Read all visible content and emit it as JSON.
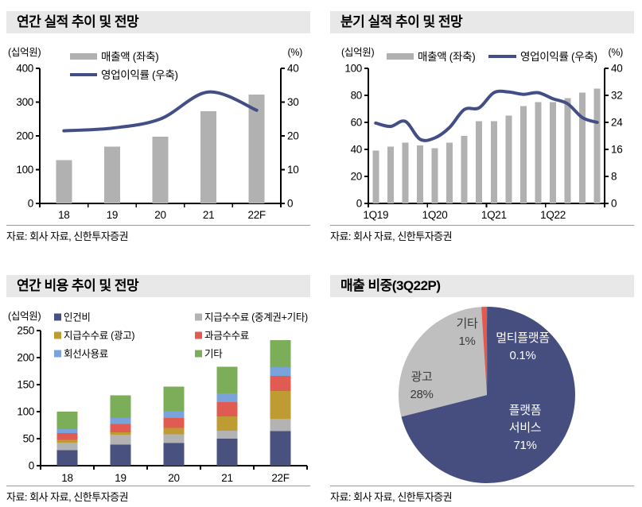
{
  "source_note": "자료: 회사 자료, 신한투자증권",
  "chart_data": [
    {
      "id": "annual",
      "type": "bar+line",
      "title": "연간 실적 추이 및 전망",
      "categories": [
        "18",
        "19",
        "20",
        "21",
        "22F"
      ],
      "series": [
        {
          "name": "매출액 (좌축)",
          "type": "bar",
          "axis": "left",
          "color": "#B1B1B1",
          "values": [
            128,
            168,
            198,
            273,
            322
          ]
        },
        {
          "name": "영업이익률 (우축)",
          "type": "line",
          "axis": "right",
          "color": "#434E87",
          "values": [
            21.5,
            22.3,
            25.0,
            33.0,
            27.6
          ]
        }
      ],
      "left_axis": {
        "label": "(십억원)",
        "min": 0,
        "max": 400,
        "ticks": [
          0,
          100,
          200,
          300,
          400
        ]
      },
      "right_axis": {
        "label": "(%)",
        "min": 0,
        "max": 40,
        "ticks": [
          0,
          10,
          20,
          30,
          40
        ]
      },
      "legend_layout": "vertical",
      "grid": false,
      "source": "자료: 회사 자료, 신한투자증권"
    },
    {
      "id": "quarterly",
      "type": "bar+line",
      "title": "분기 실적 추이 및 전망",
      "categories": [
        "1Q19",
        "2Q19",
        "3Q19",
        "4Q19",
        "1Q20",
        "2Q20",
        "3Q20",
        "4Q20",
        "1Q21",
        "2Q21",
        "3Q21",
        "4Q21",
        "1Q22",
        "2Q22",
        "3Q22",
        "4Q22"
      ],
      "x_label_indices": [
        0,
        4,
        8,
        12
      ],
      "series": [
        {
          "name": "매출액 (좌축)",
          "type": "bar",
          "axis": "left",
          "color": "#B1B1B1",
          "values": [
            39,
            42,
            45,
            43,
            41,
            45,
            50,
            61,
            61,
            65,
            72,
            75,
            75,
            78,
            82,
            85
          ]
        },
        {
          "name": "영업이익률 (우축)",
          "type": "line",
          "axis": "right",
          "color": "#434E87",
          "values": [
            23.8,
            22.8,
            24.3,
            19.0,
            19.4,
            22.5,
            27.8,
            28.3,
            32.8,
            33.0,
            32.3,
            32.8,
            31.0,
            29.5,
            25.4,
            24.0
          ]
        }
      ],
      "left_axis": {
        "label": "(십억원)",
        "min": 0,
        "max": 100,
        "ticks": [
          0,
          20,
          40,
          60,
          80,
          100
        ]
      },
      "right_axis": {
        "label": "(%)",
        "min": 0,
        "max": 40,
        "ticks": [
          0,
          8,
          16,
          24,
          32,
          40
        ]
      },
      "legend_layout": "horizontal",
      "grid": false,
      "source": "자료: 회사 자료, 신한투자증권"
    },
    {
      "id": "cost",
      "type": "stacked-bar",
      "title": "연간 비용 추이 및 전망",
      "categories": [
        "18",
        "19",
        "20",
        "21",
        "22F"
      ],
      "left_axis": {
        "label": "(십억원)",
        "min": 0,
        "max": 250,
        "ticks": [
          0,
          50,
          100,
          150,
          200,
          250
        ]
      },
      "series": [
        {
          "name": "인건비",
          "color": "#49517F",
          "values": [
            29,
            39,
            42,
            50,
            64
          ]
        },
        {
          "name": "지급수수료 (중계권+기타)",
          "color": "#B3B3B3",
          "values": [
            14,
            18,
            16,
            15,
            23
          ]
        },
        {
          "name": "지급수수료 (광고)",
          "color": "#BF9B33",
          "values": [
            5,
            5,
            12,
            26,
            51
          ]
        },
        {
          "name": "과금수수료",
          "color": "#E05C52",
          "values": [
            12,
            15,
            18,
            27,
            28
          ]
        },
        {
          "name": "회선사용료",
          "color": "#7AA3DC",
          "values": [
            8,
            11,
            13,
            16,
            16
          ]
        },
        {
          "name": "기타",
          "color": "#7CAD58",
          "values": [
            32,
            42,
            45,
            49,
            50
          ]
        }
      ],
      "grid": false,
      "source": "자료: 회사 자료, 신한투자증권"
    },
    {
      "id": "mix",
      "type": "pie",
      "title": "매출 비중(3Q22P)",
      "slices": [
        {
          "label": "멀티플랫폼",
          "value": 0.1,
          "display": "0.1%",
          "color": "#454E7E",
          "label_lines": [
            "멀티플랫폼",
            "0.1%"
          ],
          "label_color": "#FFFFFF"
        },
        {
          "label": "플랫폼 서비스",
          "value": 71,
          "display": "71%",
          "color": "#454E7E",
          "label_lines": [
            "플랫폼",
            "서비스",
            "71%"
          ],
          "label_color": "#FFFFFF"
        },
        {
          "label": "광고",
          "value": 28,
          "display": "28%",
          "color": "#BFBFBF",
          "label_lines": [
            "광고",
            "28%"
          ],
          "label_color": "#3A3A3A"
        },
        {
          "label": "기타",
          "value": 1,
          "display": "1%",
          "color": "#E5584C",
          "label_lines": [
            "기타",
            "1%"
          ],
          "label_color": "#3A3A3A"
        }
      ],
      "source": "자료: 회사 자료, 신한투자증권"
    }
  ]
}
